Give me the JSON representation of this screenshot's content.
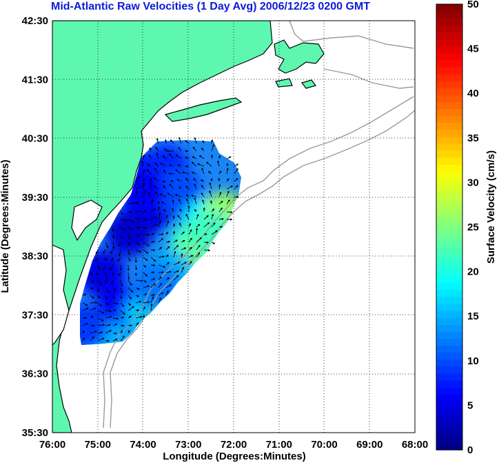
{
  "chart_data": {
    "type": "heatmap",
    "title": "Mid-Atlantic Raw Velocities (1 Day Avg) 2006/12/23 0200 GMT",
    "xlabel": "Longitude (Degrees:Minutes)",
    "ylabel": "Latitude (Degrees:Minutes)",
    "xlim": [
      -76,
      -68
    ],
    "ylim": [
      35.5,
      42.5
    ],
    "x_ticks": [
      {
        "value": -76,
        "label": "76:00"
      },
      {
        "value": -75,
        "label": "75:00"
      },
      {
        "value": -74,
        "label": "74:00"
      },
      {
        "value": -73,
        "label": "73:00"
      },
      {
        "value": -72,
        "label": "72:00"
      },
      {
        "value": -71,
        "label": "71:00"
      },
      {
        "value": -70,
        "label": "70:00"
      },
      {
        "value": -69,
        "label": "69:00"
      },
      {
        "value": -68,
        "label": "68:00"
      }
    ],
    "y_ticks": [
      {
        "value": 35.5,
        "label": "35:30"
      },
      {
        "value": 36.5,
        "label": "36:30"
      },
      {
        "value": 37.5,
        "label": "37:30"
      },
      {
        "value": 38.5,
        "label": "38:30"
      },
      {
        "value": 39.5,
        "label": "39:30"
      },
      {
        "value": 40.5,
        "label": "40:30"
      },
      {
        "value": 41.5,
        "label": "41:30"
      },
      {
        "value": 42.5,
        "label": "42:30"
      }
    ],
    "grid": true,
    "colorbar": {
      "label": "Surface Velocity (cm/s)",
      "range": [
        0,
        50
      ],
      "ticks": [
        "0",
        "5",
        "10",
        "15",
        "20",
        "25",
        "30",
        "35",
        "40",
        "45",
        "50"
      ],
      "colormap": "jet"
    },
    "colors": {
      "land": "#5ef7b0",
      "title": "#0b1bd6",
      "contour": "#999999",
      "grid": "#000000"
    },
    "velocity_field": {
      "units": "cm/s",
      "cells": [
        {
          "lon": -74.2,
          "lat": 39.9,
          "v": 7
        },
        {
          "lon": -73.5,
          "lat": 40.0,
          "v": 8
        },
        {
          "lon": -73.8,
          "lat": 39.3,
          "v": 5
        },
        {
          "lon": -74.3,
          "lat": 38.9,
          "v": 4
        },
        {
          "lon": -74.9,
          "lat": 38.2,
          "v": 5
        },
        {
          "lon": -74.5,
          "lat": 37.6,
          "v": 6
        },
        {
          "lon": -73.2,
          "lat": 39.6,
          "v": 10
        },
        {
          "lon": -72.6,
          "lat": 39.1,
          "v": 18
        },
        {
          "lon": -72.2,
          "lat": 39.2,
          "v": 26
        },
        {
          "lon": -72.9,
          "lat": 38.7,
          "v": 21
        },
        {
          "lon": -72.8,
          "lat": 38.5,
          "v": 24
        },
        {
          "lon": -73.4,
          "lat": 38.2,
          "v": 15
        },
        {
          "lon": -73.9,
          "lat": 37.5,
          "v": 16
        },
        {
          "lon": -74.8,
          "lat": 37.0,
          "v": 15
        },
        {
          "lon": -75.3,
          "lat": 37.3,
          "v": 9
        },
        {
          "lon": -72.5,
          "lat": 38.9,
          "v": 22
        },
        {
          "lon": -74.0,
          "lat": 39.6,
          "v": 6
        },
        {
          "lon": -73.7,
          "lat": 38.0,
          "v": 12
        }
      ]
    }
  }
}
